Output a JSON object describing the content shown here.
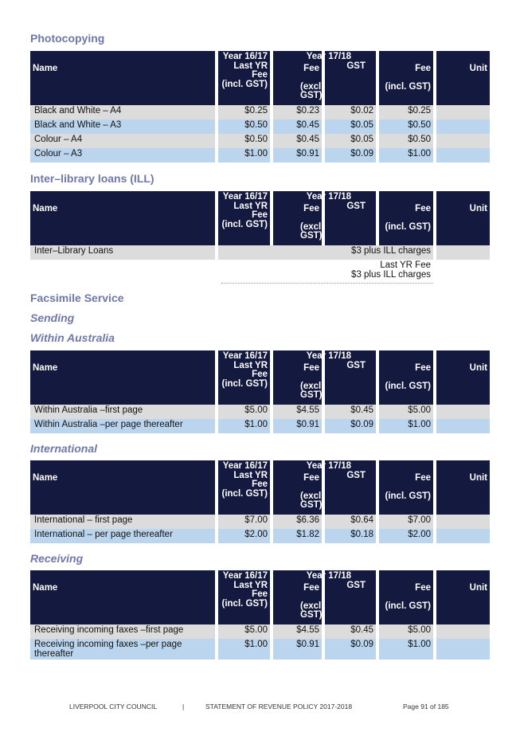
{
  "header_labels": {
    "name": "Name",
    "prev_line1": "Year 16/17",
    "prev_line2": "Last YR",
    "prev_line3": "Fee",
    "prev_line4": "(incl. GST)",
    "current_year": "Year 17/18",
    "fee": "Fee",
    "excl_line1": "(excl.",
    "excl_line2": "GST)",
    "gst": "GST",
    "fee_incl": "Fee",
    "incl": "(incl. GST)",
    "unit": "Unit"
  },
  "sections": {
    "photocopying": {
      "title": "Photocopying",
      "rows": [
        {
          "name": "Black and White – A4",
          "prev": "$0.25",
          "fee": "$0.23",
          "gst": "$0.02",
          "incl": "$0.25",
          "unit": ""
        },
        {
          "name": "Black and White – A3",
          "prev": "$0.50",
          "fee": "$0.45",
          "gst": "$0.05",
          "incl": "$0.50",
          "unit": ""
        },
        {
          "name": "Colour – A4",
          "prev": "$0.50",
          "fee": "$0.45",
          "gst": "$0.05",
          "incl": "$0.50",
          "unit": ""
        },
        {
          "name": "Colour – A3",
          "prev": "$1.00",
          "fee": "$0.91",
          "gst": "$0.09",
          "incl": "$1.00",
          "unit": ""
        }
      ]
    },
    "ill": {
      "title": "Inter–library loans (ILL)",
      "row_name": "Inter–Library Loans",
      "row_value": "$3 plus ILL charges",
      "note_line1": "Last YR Fee",
      "note_line2": "$3 plus ILL charges"
    },
    "facsimile": {
      "title": "Facsimile Service",
      "sending": "Sending",
      "within_title": "Within Australia",
      "within_rows": [
        {
          "name": "Within Australia –first page",
          "prev": "$5.00",
          "fee": "$4.55",
          "gst": "$0.45",
          "incl": "$5.00",
          "unit": ""
        },
        {
          "name": "Within Australia –per page thereafter",
          "prev": "$1.00",
          "fee": "$0.91",
          "gst": "$0.09",
          "incl": "$1.00",
          "unit": ""
        }
      ],
      "international_title": "International",
      "international_rows": [
        {
          "name": "International – first page",
          "prev": "$7.00",
          "fee": "$6.36",
          "gst": "$0.64",
          "incl": "$7.00",
          "unit": ""
        },
        {
          "name": "International – per page thereafter",
          "prev": "$2.00",
          "fee": "$1.82",
          "gst": "$0.18",
          "incl": "$2.00",
          "unit": ""
        }
      ],
      "receiving_title": "Receiving",
      "receiving_rows": [
        {
          "name": "Receiving incoming faxes –first page",
          "prev": "$5.00",
          "fee": "$4.55",
          "gst": "$0.45",
          "incl": "$5.00",
          "unit": ""
        },
        {
          "name": "Receiving incoming faxes –per page thereafter",
          "prev": "$1.00",
          "fee": "$0.91",
          "gst": "$0.09",
          "incl": "$1.00",
          "unit": ""
        }
      ]
    }
  },
  "footer": {
    "org": "LIVERPOOL CITY COUNCIL",
    "separator": "|",
    "doc": "STATEMENT OF REVENUE POLICY 2017-2018",
    "page": "Page 91 of 185"
  }
}
